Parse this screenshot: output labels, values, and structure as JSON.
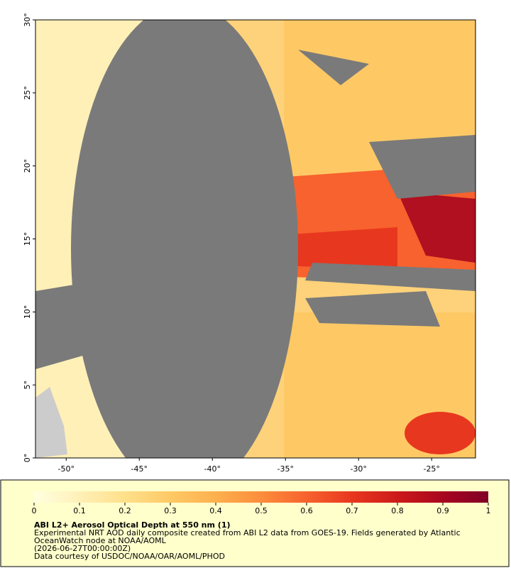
{
  "map": {
    "xlim": [
      -52.1,
      -22
    ],
    "ylim": [
      0,
      30
    ],
    "xticks": [
      {
        "value": -50,
        "label": "-50°"
      },
      {
        "value": -45,
        "label": "-45°"
      },
      {
        "value": -40,
        "label": "-40°"
      },
      {
        "value": -35,
        "label": "-35°"
      },
      {
        "value": -30,
        "label": "-30°"
      },
      {
        "value": -25,
        "label": "-25°"
      }
    ],
    "yticks": [
      {
        "value": 0,
        "label": "0°"
      },
      {
        "value": 5,
        "label": "5°"
      },
      {
        "value": 10,
        "label": "10°"
      },
      {
        "value": 15,
        "label": "15°"
      },
      {
        "value": 20,
        "label": "20°"
      },
      {
        "value": 25,
        "label": "25°"
      },
      {
        "value": 30,
        "label": "30°"
      }
    ]
  },
  "colorbar": {
    "range": [
      0,
      1
    ],
    "ticks": [
      0,
      0.1,
      0.2,
      0.3,
      0.4,
      0.5,
      0.6,
      0.7,
      0.8,
      0.9,
      1
    ],
    "colors": [
      "#ffffe0",
      "#fff0b8",
      "#ffe08a",
      "#fec965",
      "#fdb04e",
      "#fc8d3c",
      "#f7622e",
      "#e8371f",
      "#cc1a1a",
      "#a8061f",
      "#800026"
    ]
  },
  "caption": {
    "title": "ABI L2+ Aerosol Optical Depth at 550 nm (1)",
    "lines": [
      "Experimental NRT AOD daily composite created from ABI L2 data from GOES-19. Fields generated by Atlantic",
      "OceanWatch node at NOAA/AOML",
      "(2026-06-27T00:00:00Z)",
      "Data courtesy of USDOC/NOAA/OAR/AOML/PHOD"
    ]
  }
}
